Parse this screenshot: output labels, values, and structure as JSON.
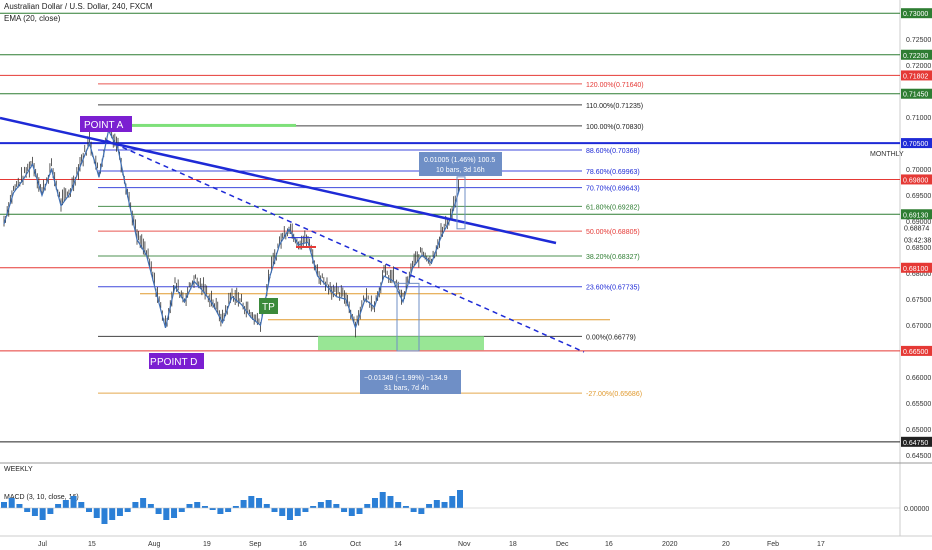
{
  "header": {
    "symbol_line": "Australian Dollar / U.S. Dollar, 240, FXCM",
    "indicator": "EMA (20, close)"
  },
  "colors": {
    "red": "#e53935",
    "green": "#2e7d32",
    "blue": "#1e2ad6",
    "candle": "#333333",
    "ema": "#3f6fb4",
    "fib_label_blue": "#1e2ad6",
    "fib_label_green": "#2e7d32",
    "fib_label_red": "#e53935",
    "orange": "#e09a2f",
    "purple": "#7b1fd1",
    "measure_bg": "#6f8fc6",
    "green_zone": "#7ee07a"
  },
  "chart_data": {
    "type": "candlestick",
    "ylim": [
      0.644,
      0.731
    ],
    "y_ticks": [
      "0.72500",
      "0.72000",
      "0.71500",
      "0.71000",
      "0.70500",
      "0.70000",
      "0.69500",
      "0.69000",
      "0.68500",
      "0.68000",
      "0.67500",
      "0.67000",
      "0.66500",
      "0.66000",
      "0.65500",
      "0.65000",
      "0.64500"
    ],
    "x_ticks": [
      "Jul",
      "15",
      "Aug",
      "19",
      "Sep",
      "16",
      "Oct",
      "14",
      "Nov",
      "18",
      "Dec",
      "16",
      "2020",
      "20",
      "Feb",
      "17"
    ],
    "price_path": [
      0.69,
      0.696,
      0.6985,
      0.7015,
      0.6955,
      0.7005,
      0.6935,
      0.696,
      0.701,
      0.7055,
      0.699,
      0.708,
      0.7045,
      0.6955,
      0.687,
      0.684,
      0.677,
      0.67,
      0.678,
      0.675,
      0.679,
      0.677,
      0.6745,
      0.671,
      0.676,
      0.6745,
      0.672,
      0.6705,
      0.68,
      0.686,
      0.689,
      0.686,
      0.6865,
      0.68,
      0.678,
      0.676,
      0.6755,
      0.67,
      0.6755,
      0.674,
      0.68,
      0.679,
      0.675,
      0.6815,
      0.684,
      0.6825,
      0.6875,
      0.691,
      0.697
    ],
    "levels": [
      {
        "price": 0.73,
        "label": "0.73000",
        "color": "green"
      },
      {
        "price": 0.722,
        "label": "0.72200",
        "color": "green"
      },
      {
        "price": 0.71802,
        "label": "0.71802",
        "color": "red"
      },
      {
        "price": 0.7145,
        "label": "0.71450",
        "color": "green"
      },
      {
        "price": 0.705,
        "label": "0.70500",
        "color": "blue"
      },
      {
        "price": 0.698,
        "label": "0.69800",
        "color": "red"
      },
      {
        "price": 0.6913,
        "label": "0.69130",
        "color": "green"
      },
      {
        "price": 0.681,
        "label": "0.68100",
        "color": "red"
      },
      {
        "price": 0.665,
        "label": "0.66500",
        "color": "red"
      },
      {
        "price": 0.6475,
        "label": "0.64750",
        "color": "dark"
      }
    ],
    "fib_levels": [
      {
        "price": 0.7164,
        "label": "120.00%(0.71640)",
        "color": "red"
      },
      {
        "price": 0.71235,
        "label": "110.00%(0.71235)",
        "color": "dark"
      },
      {
        "price": 0.7083,
        "label": "100.00%(0.70830)",
        "color": "dark"
      },
      {
        "price": 0.70368,
        "label": "88.60%(0.70368)",
        "color": "blue"
      },
      {
        "price": 0.69963,
        "label": "78.60%(0.69963)",
        "color": "blue"
      },
      {
        "price": 0.69643,
        "label": "70.70%(0.69643)",
        "color": "blue"
      },
      {
        "price": 0.69282,
        "label": "61.80%(0.69282)",
        "color": "green"
      },
      {
        "price": 0.68805,
        "label": "50.00%(0.68805)",
        "color": "red"
      },
      {
        "price": 0.68327,
        "label": "38.20%(0.68327)",
        "color": "green"
      },
      {
        "price": 0.67735,
        "label": "23.60%(0.67735)",
        "color": "blue"
      },
      {
        "price": 0.66779,
        "label": "0.00%(0.66779)",
        "color": "dark"
      },
      {
        "price": 0.65686,
        "label": "-27.00%(0.65686)",
        "color": "orange"
      }
    ],
    "current_price": "0.68874",
    "countdown": "03:42:38",
    "annotations": {
      "point_a": "POINT A",
      "point_d": "POINT D",
      "point_d_prefix": "P",
      "tp": "TP",
      "monthly": "MONTHLY",
      "measure_up_1": "0.01005 (1.46%) 100.5",
      "measure_up_2": "10 bars, 3d 16h",
      "measure_down_1": "−0.01349 (−1.99%) −134.9",
      "measure_down_2": "31 bars, 7d 4h"
    },
    "weekly_label": "WEEKLY",
    "macd": {
      "label": "MACD (3, 10, close, 16)",
      "zero_label": "0.00000",
      "histogram": [
        3,
        5,
        2,
        -2,
        -4,
        -6,
        -3,
        2,
        4,
        6,
        3,
        -2,
        -5,
        -8,
        -6,
        -4,
        -2,
        3,
        5,
        2,
        -3,
        -6,
        -5,
        -2,
        2,
        3,
        1,
        -1,
        -3,
        -2,
        1,
        4,
        6,
        5,
        2,
        -2,
        -4,
        -6,
        -4,
        -2,
        1,
        3,
        4,
        2,
        -2,
        -4,
        -3,
        2,
        5,
        8,
        6,
        3,
        1,
        -2,
        -3,
        2,
        4,
        3,
        6,
        9
      ]
    }
  }
}
